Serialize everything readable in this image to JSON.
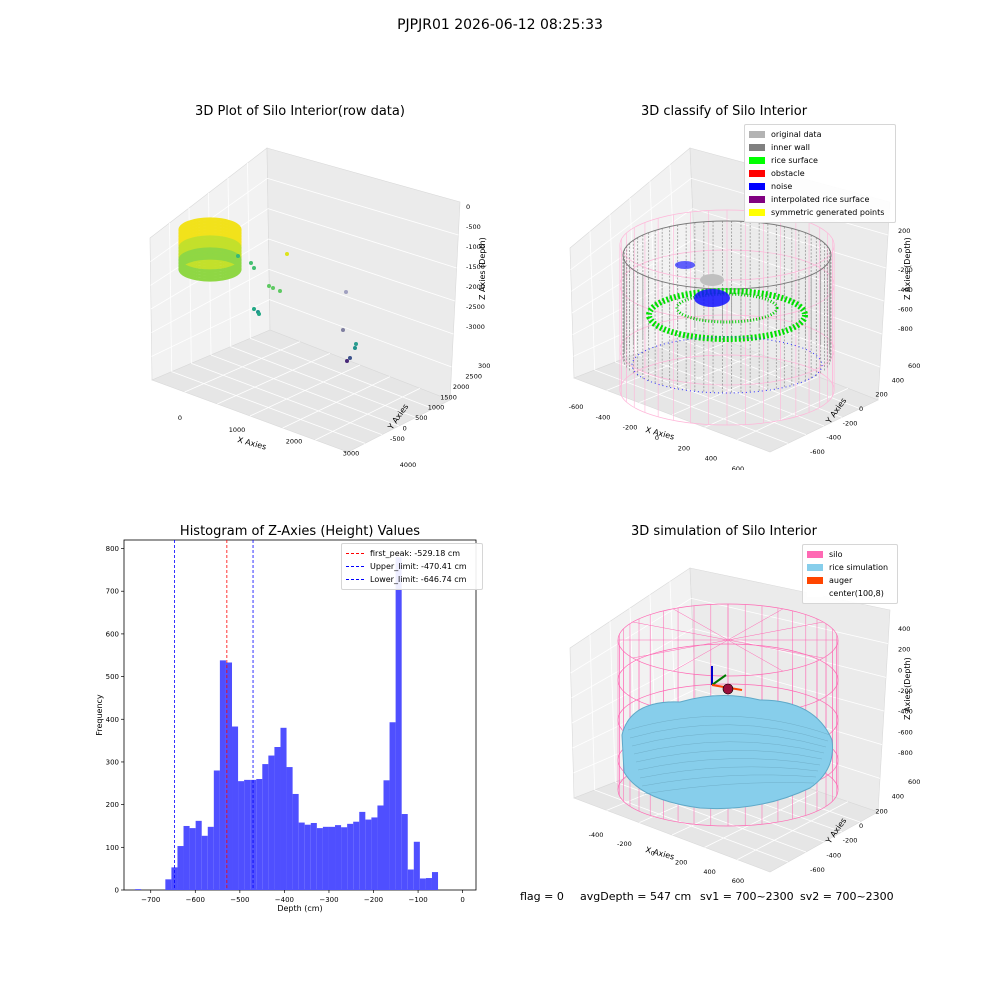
{
  "suptitle": "PJPJR01 2026-06-12 08:25:33",
  "panel_raw": {
    "title": "3D Plot of Silo Interior(row data)",
    "xlabel": "X Axies",
    "ylabel": "Y Axies",
    "zlabel": "Z Axies (Depth)",
    "xticks": [
      "0",
      "1000",
      "2000",
      "3000",
      "4000"
    ],
    "yticks": [
      "-500",
      "0",
      "500",
      "1000",
      "1500",
      "2000",
      "2500",
      "3000"
    ],
    "zticks": [
      "0",
      "-500",
      "-1000",
      "-1500",
      "-2000",
      "-2500",
      "-3000"
    ]
  },
  "panel_classify": {
    "title": "3D classify of Silo Interior",
    "xlabel": "X Axies",
    "ylabel": "Y Axies",
    "zlabel": "Z Axies (Depth)",
    "xticks": [
      "-600",
      "-400",
      "-200",
      "0",
      "200",
      "400",
      "600"
    ],
    "yticks": [
      "-600",
      "-400",
      "-200",
      "0",
      "200",
      "400",
      "600"
    ],
    "zticks": [
      "200",
      "0",
      "-200",
      "-400",
      "-600",
      "-800"
    ],
    "legend": [
      {
        "label": "original data",
        "color": "#b3b3b3"
      },
      {
        "label": "inner wall",
        "color": "#808080"
      },
      {
        "label": "rice surface",
        "color": "#00ff00"
      },
      {
        "label": "obstacle",
        "color": "#ff0000"
      },
      {
        "label": "noise",
        "color": "#0000ff"
      },
      {
        "label": "interpolated rice surface",
        "color": "#800080"
      },
      {
        "label": "symmetric generated points",
        "color": "#ffff00"
      }
    ]
  },
  "panel_hist": {
    "title": "Histogram of Z-Axies (Height) Values",
    "xlabel": "Depth (cm)",
    "ylabel": "Frequency",
    "legend": [
      {
        "label": "first_peak: -529.18 cm",
        "color": "#ff0000"
      },
      {
        "label": "Upper_limit: -470.41 cm",
        "color": "#0000ff"
      },
      {
        "label": "Lower_limit: -646.74 cm",
        "color": "#0000ff"
      }
    ]
  },
  "panel_sim": {
    "title": "3D simulation of Silo Interior",
    "xlabel": "X Axies",
    "ylabel": "Y Axies",
    "zlabel": "Z Axies (Depth)",
    "xticks": [
      "-400",
      "-200",
      "0",
      "200",
      "400",
      "600"
    ],
    "yticks": [
      "-600",
      "-400",
      "-200",
      "0",
      "200",
      "400",
      "600"
    ],
    "zticks": [
      "400",
      "200",
      "0",
      "-200",
      "-400",
      "-600",
      "-800"
    ],
    "legend": [
      {
        "label": "silo",
        "color": "#ff69b4"
      },
      {
        "label": "rice simulation",
        "color": "#87ceeb"
      },
      {
        "label": "auger",
        "color": "#ff4500"
      },
      {
        "label": "center(100,8)",
        "color": "#ffffff"
      }
    ]
  },
  "info": {
    "flag": "flag = 0",
    "avg_depth": "avgDepth = 547 cm",
    "sv1": "sv1 = 700~2300",
    "sv2": "sv2 = 700~2300"
  },
  "chart_data": {
    "type": "bar",
    "title": "Histogram of Z-Axies (Height) Values",
    "xlabel": "Depth (cm)",
    "ylabel": "Frequency",
    "xlim": [
      -760,
      30
    ],
    "ylim": [
      0,
      820
    ],
    "xticks": [
      -700,
      -600,
      -500,
      -400,
      -300,
      -200,
      -100,
      0
    ],
    "yticks": [
      0,
      100,
      200,
      300,
      400,
      500,
      600,
      700,
      800
    ],
    "bin_width": 13.6,
    "bin_starts": [
      -735.2,
      -721.6,
      -708.0,
      -694.4,
      -680.8,
      -667.2,
      -653.6,
      -640.0,
      -626.4,
      -612.8,
      -599.2,
      -585.6,
      -572.0,
      -558.4,
      -544.8,
      -531.2,
      -517.6,
      -504.0,
      -490.4,
      -476.8,
      -463.2,
      -449.6,
      -436.0,
      -422.4,
      -408.8,
      -395.2,
      -381.6,
      -368.0,
      -354.4,
      -340.8,
      -327.2,
      -313.6,
      -300.0,
      -286.4,
      -272.8,
      -259.2,
      -245.6,
      -232.0,
      -218.4,
      -204.8,
      -191.2,
      -177.6,
      -164.0,
      -150.4,
      -136.8,
      -123.2,
      -109.6,
      -96.0,
      -82.4,
      -68.8,
      -55.2,
      -41.6,
      -28.0,
      -14.4
    ],
    "values": [
      2,
      0,
      0,
      0,
      0,
      25,
      53,
      103,
      150,
      145,
      162,
      127,
      148,
      280,
      538,
      533,
      383,
      255,
      258,
      258,
      260,
      295,
      315,
      335,
      380,
      288,
      225,
      158,
      153,
      157,
      145,
      148,
      148,
      152,
      147,
      155,
      160,
      183,
      165,
      170,
      198,
      257,
      393,
      780,
      178,
      48,
      113,
      27,
      28,
      42,
      0,
      0,
      0,
      0
    ],
    "series": [
      {
        "name": "",
        "values": []
      }
    ],
    "vlines": [
      {
        "label": "first_peak: -529.18 cm",
        "x": -529.18,
        "color": "#ff0000"
      },
      {
        "label": "Upper_limit: -470.41 cm",
        "x": -470.41,
        "color": "#0000ff"
      },
      {
        "label": "Lower_limit: -646.74 cm",
        "x": -646.74,
        "color": "#0000ff"
      }
    ],
    "bar_color": "#4f4fff",
    "legend_position": "top-right"
  }
}
